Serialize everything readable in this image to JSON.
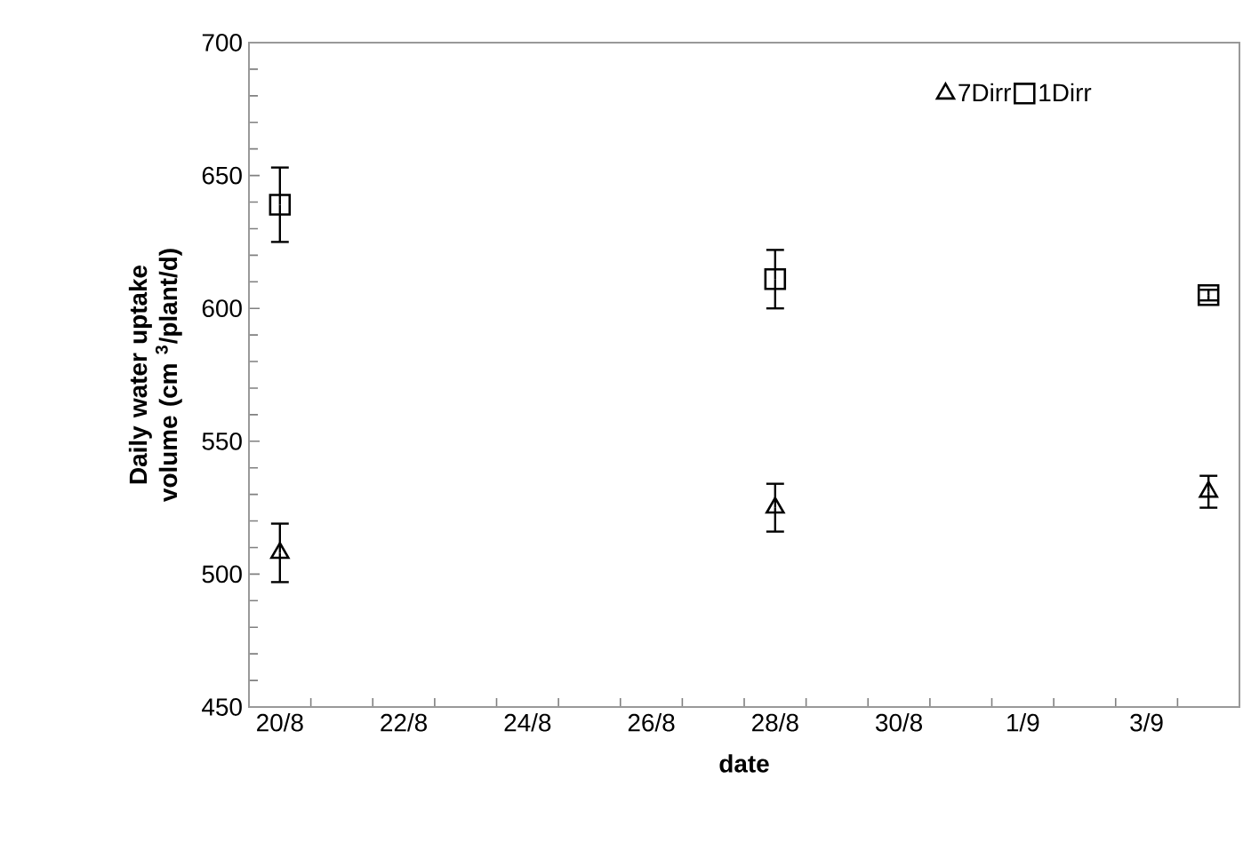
{
  "chart_data": {
    "type": "scatter",
    "categories": [
      "20/8",
      null,
      "22/8",
      null,
      "24/8",
      null,
      "26/8",
      null,
      "28/8",
      null,
      "30/8",
      null,
      "1/9",
      null,
      "3/9",
      null
    ],
    "series": [
      {
        "name": "7Dirr",
        "color": "#000000",
        "marker": "triangle",
        "values": [
          508,
          null,
          null,
          null,
          null,
          null,
          null,
          null,
          525,
          null,
          null,
          null,
          null,
          null,
          null,
          531
        ],
        "errors": [
          11,
          null,
          null,
          null,
          null,
          null,
          null,
          null,
          9,
          null,
          null,
          null,
          null,
          null,
          null,
          6
        ]
      },
      {
        "name": "1Dirr",
        "color": "#000000",
        "marker": "square",
        "values": [
          639,
          null,
          null,
          null,
          null,
          null,
          null,
          null,
          611,
          null,
          null,
          null,
          null,
          null,
          null,
          605
        ],
        "errors": [
          14,
          null,
          null,
          null,
          null,
          null,
          null,
          null,
          11,
          null,
          null,
          null,
          null,
          null,
          null,
          2
        ]
      }
    ],
    "xlabel": "date",
    "ylabel": "Daily water uptake volume (cm $^{3}$/plant/d)",
    "ylim": [
      450,
      700
    ],
    "yticks": [
      450,
      500,
      550,
      600,
      650,
      700
    ],
    "legend": "top right",
    "grid": false
  }
}
